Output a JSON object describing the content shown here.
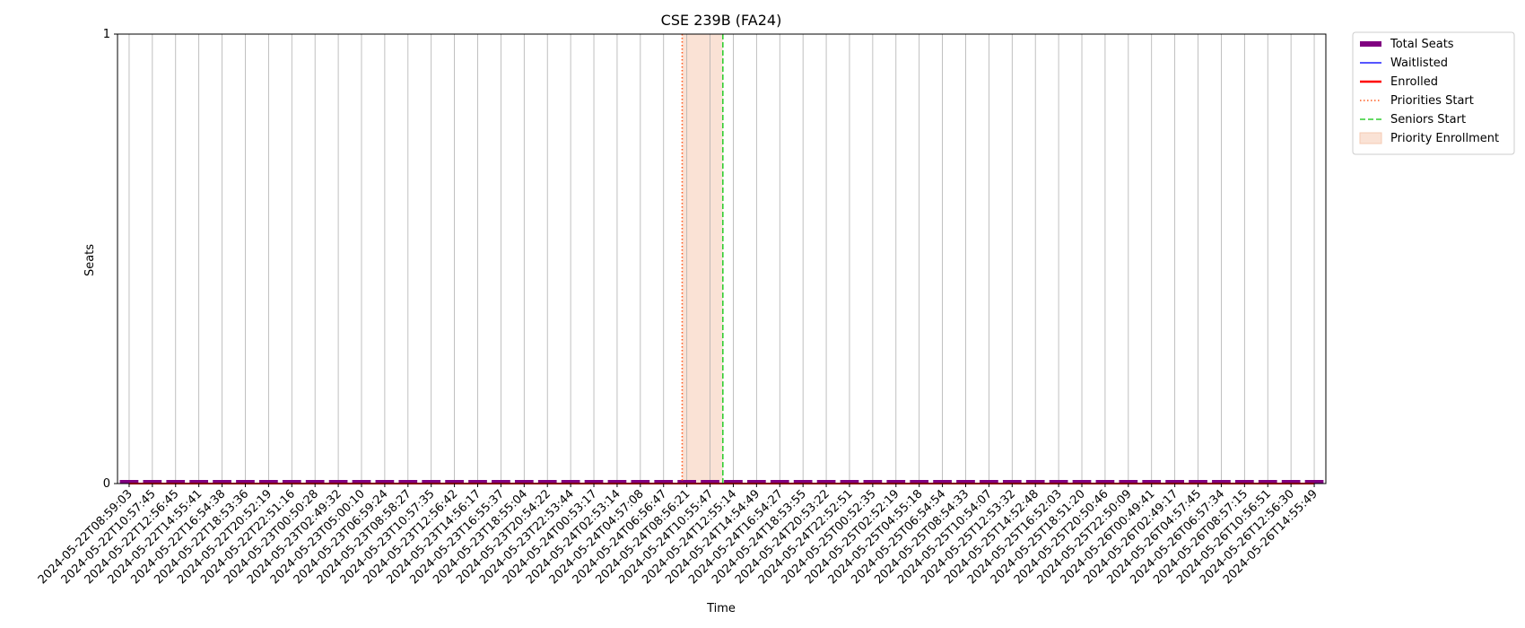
{
  "chart_data": {
    "type": "line",
    "title": "CSE 239B (FA24)",
    "xlabel": "Time",
    "ylabel": "Seats",
    "ylim": [
      0,
      1
    ],
    "yticks": [
      "0",
      "1"
    ],
    "grid": "vertical",
    "legend_placement": "outside-top-right",
    "x": [
      "2024-05-22T08:59:03",
      "2024-05-22T10:57:45",
      "2024-05-22T12:56:45",
      "2024-05-22T14:55:41",
      "2024-05-22T16:54:38",
      "2024-05-22T18:53:36",
      "2024-05-22T20:52:19",
      "2024-05-22T22:51:16",
      "2024-05-23T00:50:28",
      "2024-05-23T02:49:32",
      "2024-05-23T05:00:10",
      "2024-05-23T06:59:24",
      "2024-05-23T08:58:27",
      "2024-05-23T10:57:35",
      "2024-05-23T12:56:42",
      "2024-05-23T14:56:17",
      "2024-05-23T16:55:37",
      "2024-05-23T18:55:04",
      "2024-05-23T20:54:22",
      "2024-05-23T22:53:44",
      "2024-05-24T00:53:17",
      "2024-05-24T02:53:14",
      "2024-05-24T04:57:08",
      "2024-05-24T06:56:47",
      "2024-05-24T08:56:21",
      "2024-05-24T10:55:47",
      "2024-05-24T12:55:14",
      "2024-05-24T14:54:49",
      "2024-05-24T16:54:27",
      "2024-05-24T18:53:55",
      "2024-05-24T20:53:22",
      "2024-05-24T22:52:51",
      "2024-05-25T00:52:35",
      "2024-05-25T02:52:19",
      "2024-05-25T04:55:18",
      "2024-05-25T06:54:54",
      "2024-05-25T08:54:33",
      "2024-05-25T10:54:07",
      "2024-05-25T12:53:32",
      "2024-05-25T14:52:48",
      "2024-05-25T16:52:03",
      "2024-05-25T18:51:20",
      "2024-05-25T20:50:46",
      "2024-05-25T22:50:09",
      "2024-05-26T00:49:41",
      "2024-05-26T02:49:17",
      "2024-05-26T04:57:45",
      "2024-05-26T06:57:34",
      "2024-05-26T08:57:15",
      "2024-05-26T10:56:51",
      "2024-05-26T12:56:30",
      "2024-05-26T14:55:49"
    ],
    "series": [
      {
        "name": "Total Seats",
        "kind": "bar",
        "color": "#800080",
        "values": [
          0,
          0,
          0,
          0,
          0,
          0,
          0,
          0,
          0,
          0,
          0,
          0,
          0,
          0,
          0,
          0,
          0,
          0,
          0,
          0,
          0,
          0,
          0,
          0,
          0,
          0,
          0,
          0,
          0,
          0,
          0,
          0,
          0,
          0,
          0,
          0,
          0,
          0,
          0,
          0,
          0,
          0,
          0,
          0,
          0,
          0,
          0,
          0,
          0,
          0,
          0,
          0
        ]
      },
      {
        "name": "Waitlisted",
        "kind": "line",
        "color": "#1f1fff",
        "values": [
          0,
          0,
          0,
          0,
          0,
          0,
          0,
          0,
          0,
          0,
          0,
          0,
          0,
          0,
          0,
          0,
          0,
          0,
          0,
          0,
          0,
          0,
          0,
          0,
          0,
          0,
          0,
          0,
          0,
          0,
          0,
          0,
          0,
          0,
          0,
          0,
          0,
          0,
          0,
          0,
          0,
          0,
          0,
          0,
          0,
          0,
          0,
          0,
          0,
          0,
          0,
          0
        ]
      },
      {
        "name": "Enrolled",
        "kind": "line",
        "color": "#ff0000",
        "values": [
          0,
          0,
          0,
          0,
          0,
          0,
          0,
          0,
          0,
          0,
          0,
          0,
          0,
          0,
          0,
          0,
          0,
          0,
          0,
          0,
          0,
          0,
          0,
          0,
          0,
          0,
          0,
          0,
          0,
          0,
          0,
          0,
          0,
          0,
          0,
          0,
          0,
          0,
          0,
          0,
          0,
          0,
          0,
          0,
          0,
          0,
          0,
          0,
          0,
          0,
          0,
          0
        ]
      }
    ],
    "annotations": [
      {
        "name": "Priorities Start",
        "kind": "vline",
        "style": "dotted",
        "color": "#ff5a1f",
        "at_index": 23.8
      },
      {
        "name": "Seniors Start",
        "kind": "vline",
        "style": "dashed",
        "color": "#32cd32",
        "at_index": 25.55
      },
      {
        "name": "Priority Enrollment",
        "kind": "span",
        "color": "#f5cbb3",
        "from_index": 23.8,
        "to_index": 25.55
      }
    ]
  }
}
